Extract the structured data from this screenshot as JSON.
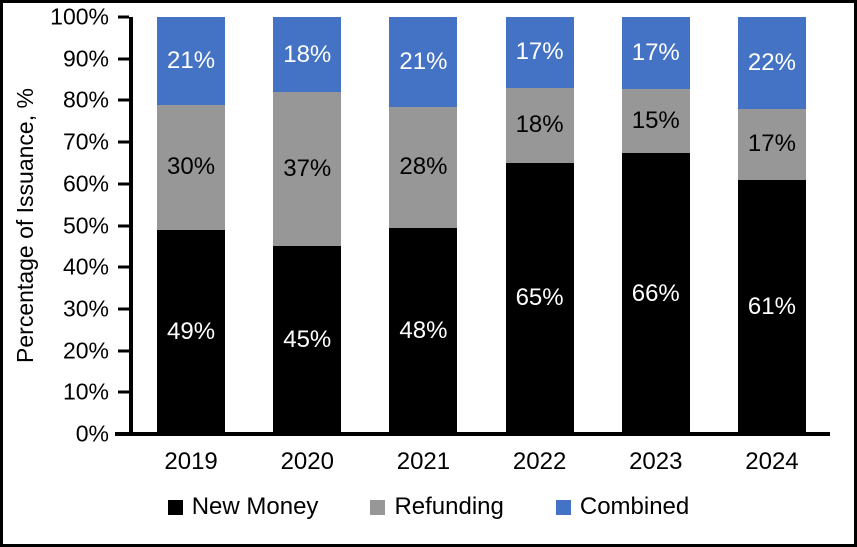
{
  "chart_data": {
    "type": "bar",
    "stacked": true,
    "categories": [
      "2019",
      "2020",
      "2021",
      "2022",
      "2023",
      "2024"
    ],
    "series": [
      {
        "name": "New Money",
        "color": "#000000",
        "label_color": "#ffffff",
        "values": [
          49,
          45,
          48,
          65,
          66,
          61
        ]
      },
      {
        "name": "Refunding",
        "color": "#979797",
        "label_color": "#000000",
        "values": [
          30,
          37,
          28,
          18,
          15,
          17
        ]
      },
      {
        "name": "Combined",
        "color": "#4472C4",
        "label_color": "#ffffff",
        "values": [
          21,
          18,
          21,
          17,
          17,
          22
        ]
      }
    ],
    "ylabel": "Percentage of Issuance, %",
    "xlabel": "",
    "ylim": [
      0,
      100
    ],
    "y_tick_labels": [
      "0%",
      "10%",
      "20%",
      "30%",
      "40%",
      "50%",
      "60%",
      "70%",
      "80%",
      "90%",
      "100%"
    ],
    "data_label_suffix": "%",
    "grid": false,
    "legend_position": "bottom",
    "frame_color": "#000000",
    "background_color": "#ffffff"
  }
}
